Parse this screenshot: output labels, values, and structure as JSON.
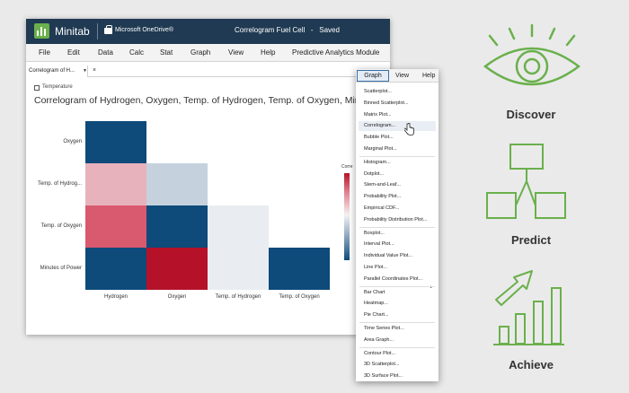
{
  "app": {
    "name": "Minitab",
    "storage": "Microsoft OneDrive®",
    "doc_title": "Correlogram Fuel Cell",
    "doc_sep": "-",
    "status": "Saved"
  },
  "menu": [
    "File",
    "Edit",
    "Data",
    "Calc",
    "Stat",
    "Graph",
    "View",
    "Help",
    "Predictive Analytics Module"
  ],
  "tab": {
    "label": "Correlogram of H...",
    "dropdown": "▼",
    "close": "×"
  },
  "chart_data": {
    "type": "heatmap",
    "variable_label": "Temperature",
    "title": "Correlogram of Hydrogen, Oxygen, Temp. of Hydrogen, Temp. of Oxygen, Minutes of P",
    "legend_title": "Corre",
    "row_labels": [
      "Oxygen",
      "Temp. of Hydrog...",
      "Temp. of Oxygen",
      "Minutes of Power"
    ],
    "col_labels": [
      "Hydrogen",
      "Oxygen",
      "Temp. of Hydrogen",
      "Temp. of Oxygen"
    ],
    "values": [
      [
        -0.95,
        null,
        null,
        null
      ],
      [
        0.35,
        -0.2,
        null,
        null
      ],
      [
        0.6,
        -0.95,
        0.05,
        null
      ],
      [
        -0.95,
        0.95,
        -0.05,
        -0.95
      ]
    ],
    "colors": {
      "strong_positive": "#b5122a",
      "positive": "#d9596e",
      "light_positive": "#e8b2bd",
      "neutral": "#e9edf1",
      "light_negative": "#c5d2de",
      "strong_negative": "#0e4a7a"
    }
  },
  "graph_menu": {
    "tabs": [
      "Graph",
      "View",
      "Help"
    ],
    "items": [
      "Scatterplot...",
      "Binned Scatterplot...",
      "Matrix Plot...",
      "Correlogram...",
      "Bubble Plot...",
      "Marginal Plot...",
      "Histogram...",
      "Dotplot...",
      "Stem-and-Leaf...",
      "Probability Plot...",
      "Empirical CDF...",
      "Probability Distribution Plot...",
      "Boxplot...",
      "Interval Plot...",
      "Individual Value Plot...",
      "Line Plot...",
      "Parallel Coordinates Plot...",
      "Bar Chart",
      "Heatmap...",
      "Pie Chart...",
      "Time Series Plot...",
      "Area Graph...",
      "Contour Plot...",
      "3D Scatterplot...",
      "3D Surface Plot..."
    ],
    "submenu_arrow": "▸",
    "highlighted": "Correlogram..."
  },
  "features": [
    {
      "label": "Discover",
      "icon": "eye-icon"
    },
    {
      "label": "Predict",
      "icon": "flowchart-icon"
    },
    {
      "label": "Achieve",
      "icon": "growth-chart-icon"
    }
  ],
  "accent_color": "#6ab04c"
}
